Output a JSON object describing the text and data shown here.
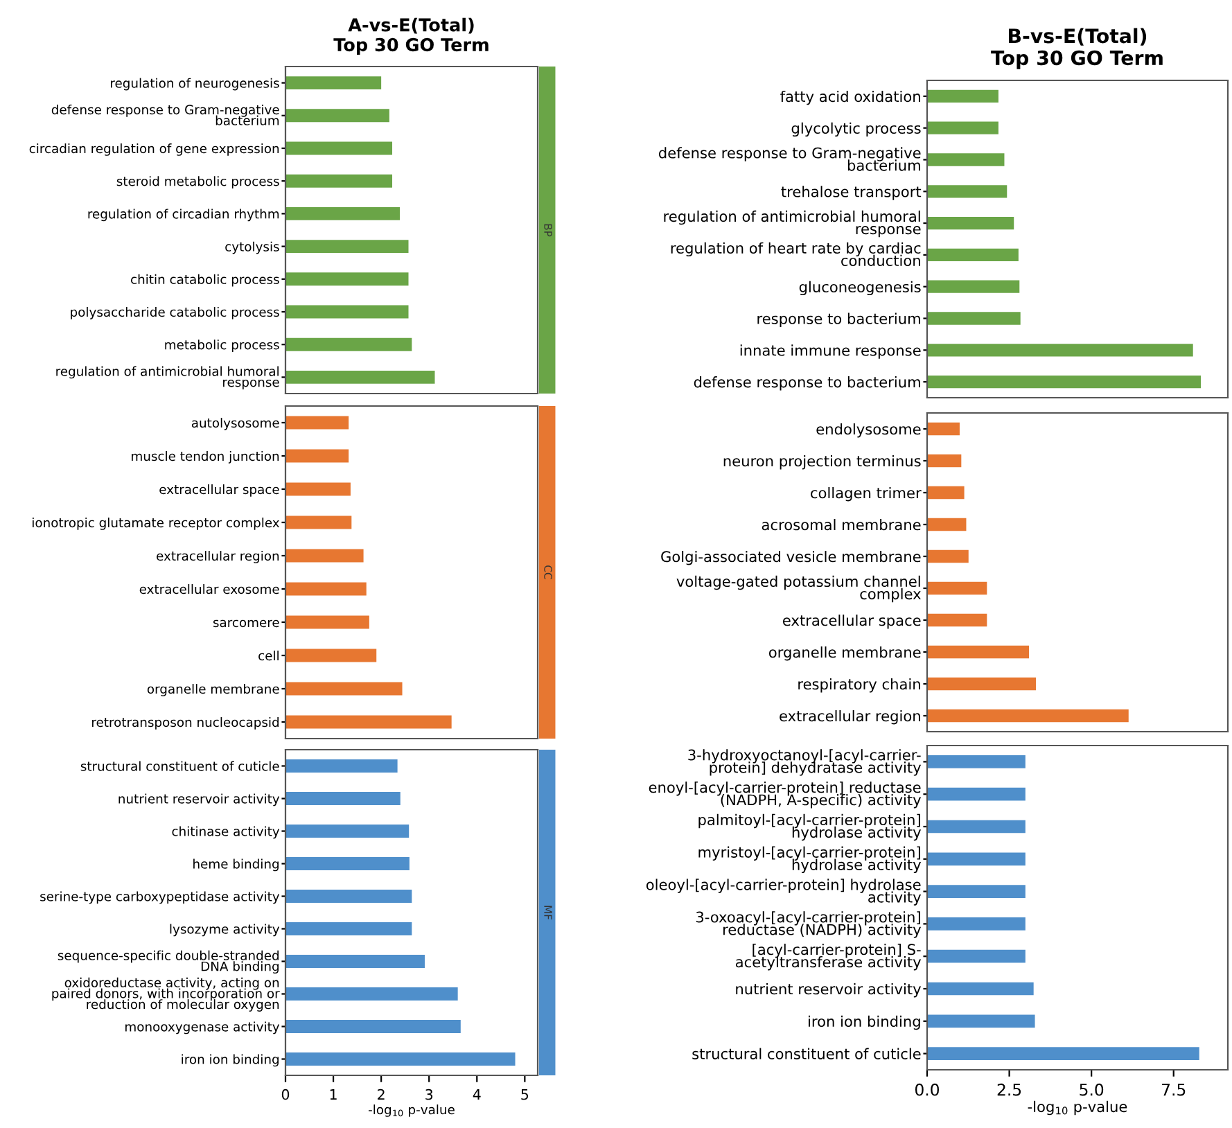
{
  "chart_data": [
    {
      "type": "bar",
      "orientation": "horizontal",
      "title": "A-vs-E(Total)\nTop 30 GO Term",
      "annotations": [
        "BP"
      ],
      "tick_labels": "y",
      "xlim": [
        0,
        5.27
      ],
      "grid": false,
      "legend": false,
      "categories": [
        "regulation of neurogenesis",
        "defense response to Gram-negative\nbacterium",
        "circadian regulation of gene expression",
        "steroid metabolic process",
        "regulation of circadian rhythm",
        "cytolysis",
        "chitin catabolic process",
        "polysaccharide catabolic process",
        "metabolic process",
        "regulation of antimicrobial humoral\nresponse"
      ],
      "series": [
        {
          "color": "#6aa547",
          "values": [
            2.0,
            2.17,
            2.23,
            2.23,
            2.39,
            2.57,
            2.57,
            2.57,
            2.64,
            3.12
          ]
        }
      ]
    },
    {
      "type": "bar",
      "orientation": "horizontal",
      "annotations": [
        "CC"
      ],
      "tick_labels": "y",
      "xlim": [
        0,
        5.27
      ],
      "grid": false,
      "legend": false,
      "categories": [
        "autolysosome",
        "muscle tendon junction",
        "extracellular space",
        "ionotropic glutamate receptor complex",
        "extracellular region",
        "extracellular exosome",
        "sarcomere",
        "cell",
        "organelle membrane",
        "retrotransposon nucleocapsid"
      ],
      "series": [
        {
          "color": "#e77731",
          "values": [
            1.32,
            1.32,
            1.36,
            1.38,
            1.63,
            1.69,
            1.75,
            1.9,
            2.44,
            3.47
          ]
        }
      ]
    },
    {
      "type": "bar",
      "orientation": "horizontal",
      "annotations": [
        "MF"
      ],
      "xlabel": "-log$_{10}$ p-value",
      "xlim": [
        0,
        5.27
      ],
      "xticks": [
        0,
        1,
        2,
        3,
        4,
        5
      ],
      "grid": false,
      "legend": false,
      "categories": [
        "structural constituent of cuticle",
        "nutrient reservoir activity",
        "chitinase activity",
        "heme binding",
        "serine-type carboxypeptidase activity",
        "lysozyme activity",
        "sequence-specific double-stranded\nDNA binding",
        "oxidoreductase activity, acting on\npaired donors, with incorporation or\nreduction of molecular oxygen",
        "monooxygenase activity",
        "iron ion binding"
      ],
      "series": [
        {
          "color": "#4f8fcb",
          "values": [
            2.34,
            2.4,
            2.58,
            2.59,
            2.64,
            2.64,
            2.91,
            3.6,
            3.66,
            4.8
          ]
        }
      ]
    },
    {
      "type": "bar",
      "orientation": "horizontal",
      "title": "B-vs-E(Total)\nTop 30 GO Term",
      "tick_labels": "y",
      "xlim": [
        0,
        9.15
      ],
      "grid": false,
      "legend": false,
      "categories": [
        "fatty acid oxidation",
        "glycolytic process",
        "defense response to Gram-negative\nbacterium",
        "trehalose transport",
        "regulation of antimicrobial humoral\nresponse",
        "regulation of heart rate by cardiac\nconduction",
        "gluconeogenesis",
        "response to bacterium",
        "innate immune response",
        "defense response to bacterium"
      ],
      "series": [
        {
          "color": "#6aa547",
          "values": [
            2.17,
            2.17,
            2.35,
            2.43,
            2.64,
            2.78,
            2.81,
            2.84,
            8.09,
            8.33
          ]
        }
      ]
    },
    {
      "type": "bar",
      "orientation": "horizontal",
      "tick_labels": "y",
      "xlim": [
        0,
        9.15
      ],
      "grid": false,
      "legend": false,
      "categories": [
        "endolysosome",
        "neuron projection terminus",
        "collagen trimer",
        "acrosomal membrane",
        "Golgi-associated vesicle membrane",
        "voltage-gated potassium channel\ncomplex",
        "extracellular space",
        "organelle membrane",
        "respiratory chain",
        "extracellular region"
      ],
      "series": [
        {
          "color": "#e77731",
          "values": [
            0.99,
            1.04,
            1.13,
            1.19,
            1.26,
            1.82,
            1.82,
            3.1,
            3.31,
            6.13
          ]
        }
      ]
    },
    {
      "type": "bar",
      "orientation": "horizontal",
      "xlabel": "-log$_{10}$ p-value",
      "xlim": [
        0,
        9.15
      ],
      "xticks": [
        {
          "value": 0,
          "label": "0.0"
        },
        2.5,
        {
          "value": 5,
          "label": "5.0"
        },
        7.5
      ],
      "grid": false,
      "legend": false,
      "categories": [
        "3-hydroxyoctanoyl-[acyl-carrier-\nprotein] dehydratase activity",
        "enoyl-[acyl-carrier-protein] reductase\n(NADPH, A-specific) activity",
        "palmitoyl-[acyl-carrier-protein]\nhydrolase activity",
        "myristoyl-[acyl-carrier-protein]\nhydrolase activity",
        "oleoyl-[acyl-carrier-protein] hydrolase\nactivity",
        "3-oxoacyl-[acyl-carrier-protein]\nreductase (NADPH) activity",
        "[acyl-carrier-protein] S-\nacetyltransferase activity",
        "nutrient reservoir activity",
        "iron ion binding",
        "structural constituent of cuticle"
      ],
      "series": [
        {
          "color": "#4f8fcb",
          "values": [
            2.99,
            2.99,
            2.99,
            2.99,
            2.99,
            2.99,
            2.99,
            3.24,
            3.28,
            8.28
          ]
        }
      ]
    }
  ]
}
